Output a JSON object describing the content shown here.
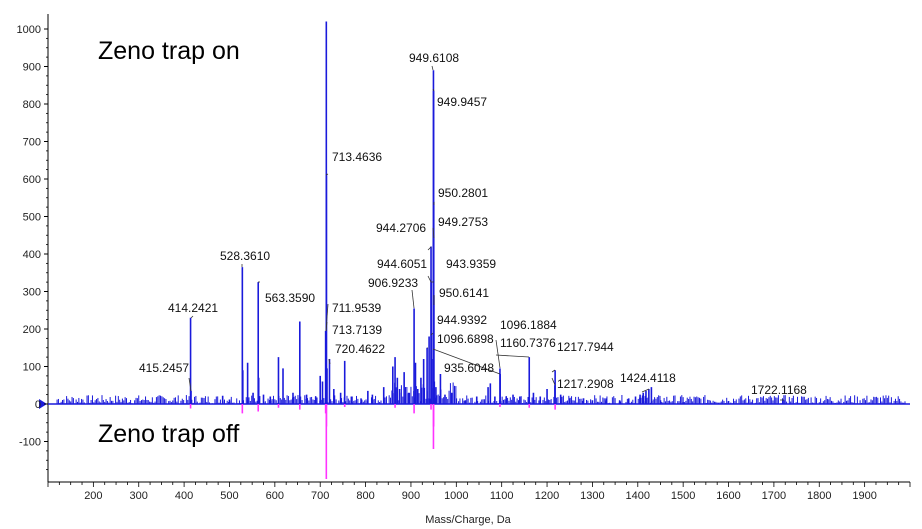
{
  "chart_data": {
    "type": "bar",
    "title": "",
    "xlabel": "Mass/Charge, Da",
    "ylabel": "",
    "xlim": [
      100,
      2000
    ],
    "ylim": [
      -200,
      1000
    ],
    "x_ticks": [
      "200",
      "300",
      "400",
      "500",
      "600",
      "700",
      "800",
      "900",
      "1000",
      "1100",
      "1200",
      "1300",
      "1400",
      "1500",
      "1600",
      "1700",
      "1800",
      "1900"
    ],
    "y_ticks": [
      "1000",
      "900",
      "800",
      "700",
      "600",
      "500",
      "400",
      "300",
      "200",
      "100",
      "0",
      "-100"
    ],
    "annotations": {
      "top": "Zeno trap on",
      "bottom": "Zeno trap off"
    },
    "colors": {
      "on": "#1a1adb",
      "off": "#ff33ff",
      "axis": "#000000",
      "label_line": "#333333"
    },
    "series": [
      {
        "name": "Zeno trap on",
        "points": [
          [
            414.2421,
            230
          ],
          [
            415.2457,
            35
          ],
          [
            485,
            22
          ],
          [
            500,
            12
          ],
          [
            528.361,
            365
          ],
          [
            529.4,
            90
          ],
          [
            540,
            110
          ],
          [
            552,
            30
          ],
          [
            563.359,
            325
          ],
          [
            564.4,
            70
          ],
          [
            575,
            25
          ],
          [
            590,
            20
          ],
          [
            608,
            125
          ],
          [
            618,
            95
          ],
          [
            640,
            30
          ],
          [
            655,
            220
          ],
          [
            670,
            25
          ],
          [
            690,
            20
          ],
          [
            700,
            75
          ],
          [
            705,
            60
          ],
          [
            711.9539,
            195
          ],
          [
            713.4636,
            1020
          ],
          [
            713.7139,
            610
          ],
          [
            715,
            95
          ],
          [
            720.4622,
            120
          ],
          [
            730,
            40
          ],
          [
            745,
            30
          ],
          [
            754,
            115
          ],
          [
            770,
            20
          ],
          [
            790,
            15
          ],
          [
            805,
            35
          ],
          [
            815,
            25
          ],
          [
            840,
            45
          ],
          [
            860,
            100
          ],
          [
            865,
            125
          ],
          [
            870,
            70
          ],
          [
            875,
            40
          ],
          [
            885,
            85
          ],
          [
            895,
            30
          ],
          [
            906.9233,
            255
          ],
          [
            910,
            110
          ],
          [
            915,
            40
          ],
          [
            922,
            70
          ],
          [
            928,
            120
          ],
          [
            935.6048,
            150
          ],
          [
            940,
            180
          ],
          [
            944.2706,
            420
          ],
          [
            944.6051,
            325
          ],
          [
            944.9392,
            185
          ],
          [
            945.5,
            120
          ],
          [
            949.2753,
            470
          ],
          [
            949.6108,
            890
          ],
          [
            949.9457,
            835
          ],
          [
            950.2801,
            540
          ],
          [
            950.6141,
            290
          ],
          [
            951.5,
            60
          ],
          [
            955,
            45
          ],
          [
            965,
            80
          ],
          [
            975,
            25
          ],
          [
            990,
            30
          ],
          [
            1000,
            15
          ],
          [
            1020,
            10
          ],
          [
            1045,
            20
          ],
          [
            1070,
            45
          ],
          [
            1075,
            55
          ],
          [
            1085,
            20
          ],
          [
            1096.1884,
            95
          ],
          [
            1096.6898,
            80
          ],
          [
            1110,
            20
          ],
          [
            1125,
            25
          ],
          [
            1140,
            20
          ],
          [
            1160.7376,
            125
          ],
          [
            1170,
            30
          ],
          [
            1185,
            20
          ],
          [
            1200,
            40
          ],
          [
            1217.2908,
            50
          ],
          [
            1217.7944,
            90
          ],
          [
            1230,
            25
          ],
          [
            1250,
            15
          ],
          [
            1280,
            15
          ],
          [
            1300,
            10
          ],
          [
            1330,
            15
          ],
          [
            1360,
            10
          ],
          [
            1380,
            15
          ],
          [
            1395,
            20
          ],
          [
            1405,
            25
          ],
          [
            1412,
            30
          ],
          [
            1418,
            35
          ],
          [
            1424.4118,
            40
          ],
          [
            1430,
            45
          ],
          [
            1450,
            10
          ],
          [
            1500,
            5
          ],
          [
            1600,
            8
          ],
          [
            1722.1168,
            10
          ]
        ]
      },
      {
        "name": "Zeno trap off",
        "points": [
          [
            414.2421,
            -12
          ],
          [
            528.361,
            -25
          ],
          [
            563.359,
            -20
          ],
          [
            608,
            -10
          ],
          [
            655,
            -15
          ],
          [
            711.9539,
            -25
          ],
          [
            713.4636,
            -200
          ],
          [
            713.7139,
            -60
          ],
          [
            754,
            -8
          ],
          [
            865,
            -10
          ],
          [
            906.9233,
            -25
          ],
          [
            944.2706,
            -15
          ],
          [
            949.6108,
            -120
          ],
          [
            949.9457,
            -60
          ],
          [
            1096.1884,
            -8
          ],
          [
            1160.7376,
            -10
          ],
          [
            1217.7944,
            -15
          ]
        ]
      }
    ],
    "peak_labels": [
      {
        "text": "414.2421",
        "x": 414.2421,
        "y": 230,
        "lx": 168,
        "ly": 312,
        "tx": 193,
        "ty": 316
      },
      {
        "text": "415.2457",
        "x": 415.2457,
        "y": 35,
        "lx": 139,
        "ly": 372,
        "tx": 189,
        "ty": 378
      },
      {
        "text": "528.3610",
        "x": 528.361,
        "y": 365,
        "lx": 220,
        "ly": 260,
        "tx": 242,
        "ty": 264
      },
      {
        "text": "563.3590",
        "x": 563.359,
        "y": 325,
        "lx": 265,
        "ly": 302,
        "tx": 260,
        "ty": 282
      },
      {
        "text": "713.4636",
        "x": 713.4636,
        "y": 610,
        "lx": 332,
        "ly": 161,
        "tx": 328,
        "ty": 174
      },
      {
        "text": "711.9539",
        "x": 711.9539,
        "y": 195,
        "lx": 332,
        "ly": 312,
        "tx": 328,
        "ty": 304
      },
      {
        "text": "713.7139",
        "x": 713.7139,
        "y": 195,
        "lx": 332,
        "ly": 334,
        "tx": 327,
        "ty": 322
      },
      {
        "text": "720.4622",
        "x": 720.4622,
        "y": 120,
        "lx": 335,
        "ly": 353,
        "tx": 330,
        "ty": 364
      },
      {
        "text": "949.6108",
        "x": 949.6108,
        "y": 890,
        "lx": 409,
        "ly": 62,
        "tx": 432,
        "ty": 66
      },
      {
        "text": "949.9457",
        "x": 949.9457,
        "y": 835,
        "lx": 437,
        "ly": 106,
        "tx": 433,
        "ty": 89
      },
      {
        "text": "950.2801",
        "x": 950.2801,
        "y": 540,
        "lx": 438,
        "ly": 197,
        "tx": 434,
        "ty": 205
      },
      {
        "text": "949.2753",
        "x": 949.2753,
        "y": 470,
        "lx": 438,
        "ly": 226,
        "tx": 434,
        "ty": 238
      },
      {
        "text": "944.2706",
        "x": 944.2706,
        "y": 420,
        "lx": 376,
        "ly": 232,
        "tx": 428,
        "ty": 250
      },
      {
        "text": "944.6051",
        "x": 944.6051,
        "y": 325,
        "lx": 377,
        "ly": 268,
        "tx": 428,
        "ty": 276
      },
      {
        "text": "943.9359",
        "x": 943.9359,
        "y": 325,
        "lx": 446,
        "ly": 268,
        "tx": 434,
        "ty": 282
      },
      {
        "text": "906.9233",
        "x": 906.9233,
        "y": 255,
        "lx": 368,
        "ly": 287,
        "tx": 412,
        "ty": 290
      },
      {
        "text": "950.6141",
        "x": 950.6141,
        "y": 290,
        "lx": 439,
        "ly": 297,
        "tx": 434,
        "ty": 305
      },
      {
        "text": "944.9392",
        "x": 944.9392,
        "y": 185,
        "lx": 437,
        "ly": 324,
        "tx": 433,
        "ty": 333
      },
      {
        "text": "1096.6898",
        "x": 1096.6898,
        "y": 80,
        "lx": 437,
        "ly": 343,
        "tx": 433,
        "ty": 349
      },
      {
        "text": "1096.1884",
        "x": 1096.1884,
        "y": 95,
        "lx": 500,
        "ly": 329,
        "tx": 496,
        "ty": 340
      },
      {
        "text": "1160.7376",
        "x": 1160.7376,
        "y": 125,
        "lx": 500,
        "ly": 347,
        "tx": 496,
        "ty": 355
      },
      {
        "text": "935.6048",
        "x": 935.6048,
        "y": 150,
        "lx": 444,
        "ly": 372,
        "tx": 428,
        "ty": 348
      },
      {
        "text": "1217.7944",
        "x": 1217.7944,
        "y": 90,
        "lx": 557,
        "ly": 351,
        "tx": 552,
        "ty": 372
      },
      {
        "text": "1217.2908",
        "x": 1217.2908,
        "y": 50,
        "lx": 557,
        "ly": 388,
        "tx": 552,
        "ty": 378
      },
      {
        "text": "1424.4118",
        "x": 1424.4118,
        "y": 40,
        "lx": 620,
        "ly": 382,
        "tx": 642,
        "ty": 392
      },
      {
        "text": "1722.1168",
        "x": 1722.1168,
        "y": 10,
        "lx": 751,
        "ly": 394,
        "tx": 780,
        "ty": 400
      }
    ]
  }
}
